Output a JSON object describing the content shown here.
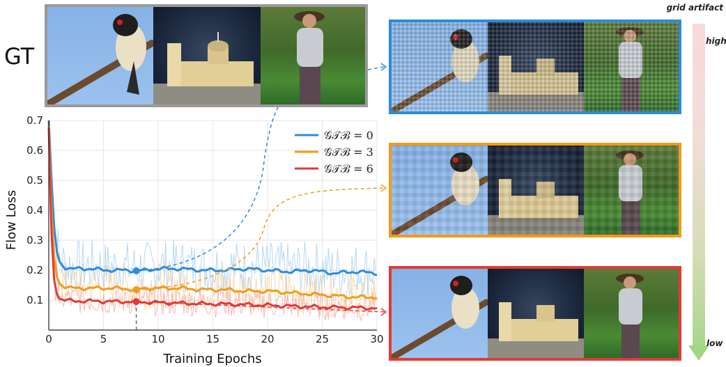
{
  "gt_label": "GT",
  "grid_artifact": {
    "title": "grid artifact",
    "high": "high",
    "low": "low"
  },
  "panel_sets": [
    {
      "name": "gt",
      "border_color": "#9a9a9a",
      "artifact": "none"
    },
    {
      "name": "gtb-0",
      "border_color": "#2c8be0",
      "artifact": "high"
    },
    {
      "name": "gtb-3",
      "border_color": "#f29b16",
      "artifact": "medium"
    },
    {
      "name": "gtb-6",
      "border_color": "#e23a36",
      "artifact": "low"
    }
  ],
  "chart_data": {
    "type": "line",
    "xlabel": "Training Epochs",
    "ylabel": "Flow Loss",
    "xlim": [
      0,
      30
    ],
    "ylim": [
      0.0,
      0.7
    ],
    "xticks": [
      0,
      5,
      10,
      15,
      20,
      25,
      30
    ],
    "yticks": [
      0.1,
      0.2,
      0.3,
      0.4,
      0.5,
      0.6,
      0.7
    ],
    "grid": true,
    "legend_position": "top-right",
    "x": [
      0,
      0.25,
      0.5,
      0.75,
      1,
      1.5,
      2,
      3,
      4,
      5,
      6,
      7,
      8,
      9,
      10,
      12,
      14,
      16,
      18,
      20,
      22,
      24,
      26,
      28,
      30
    ],
    "series": [
      {
        "name": "𝒢𝒯ℬ = 0",
        "color": "#2c8be0",
        "values": [
          0.7,
          0.5,
          0.34,
          0.26,
          0.225,
          0.21,
          0.205,
          0.205,
          0.205,
          0.2,
          0.2,
          0.2,
          0.198,
          0.2,
          0.205,
          0.205,
          0.2,
          0.2,
          0.205,
          0.2,
          0.195,
          0.2,
          0.19,
          0.195,
          0.19
        ]
      },
      {
        "name": "𝒢𝒯ℬ = 3",
        "color": "#f29b16",
        "values": [
          0.68,
          0.4,
          0.24,
          0.18,
          0.155,
          0.145,
          0.14,
          0.14,
          0.14,
          0.14,
          0.14,
          0.138,
          0.135,
          0.14,
          0.14,
          0.14,
          0.135,
          0.135,
          0.13,
          0.13,
          0.125,
          0.12,
          0.115,
          0.11,
          0.11
        ]
      },
      {
        "name": "𝒢𝒯ℬ = 6",
        "color": "#e23a36",
        "values": [
          0.67,
          0.32,
          0.17,
          0.125,
          0.105,
          0.1,
          0.098,
          0.097,
          0.097,
          0.096,
          0.095,
          0.095,
          0.095,
          0.093,
          0.092,
          0.09,
          0.088,
          0.087,
          0.085,
          0.083,
          0.08,
          0.078,
          0.076,
          0.075,
          0.073
        ]
      }
    ],
    "marker_x": 8
  }
}
